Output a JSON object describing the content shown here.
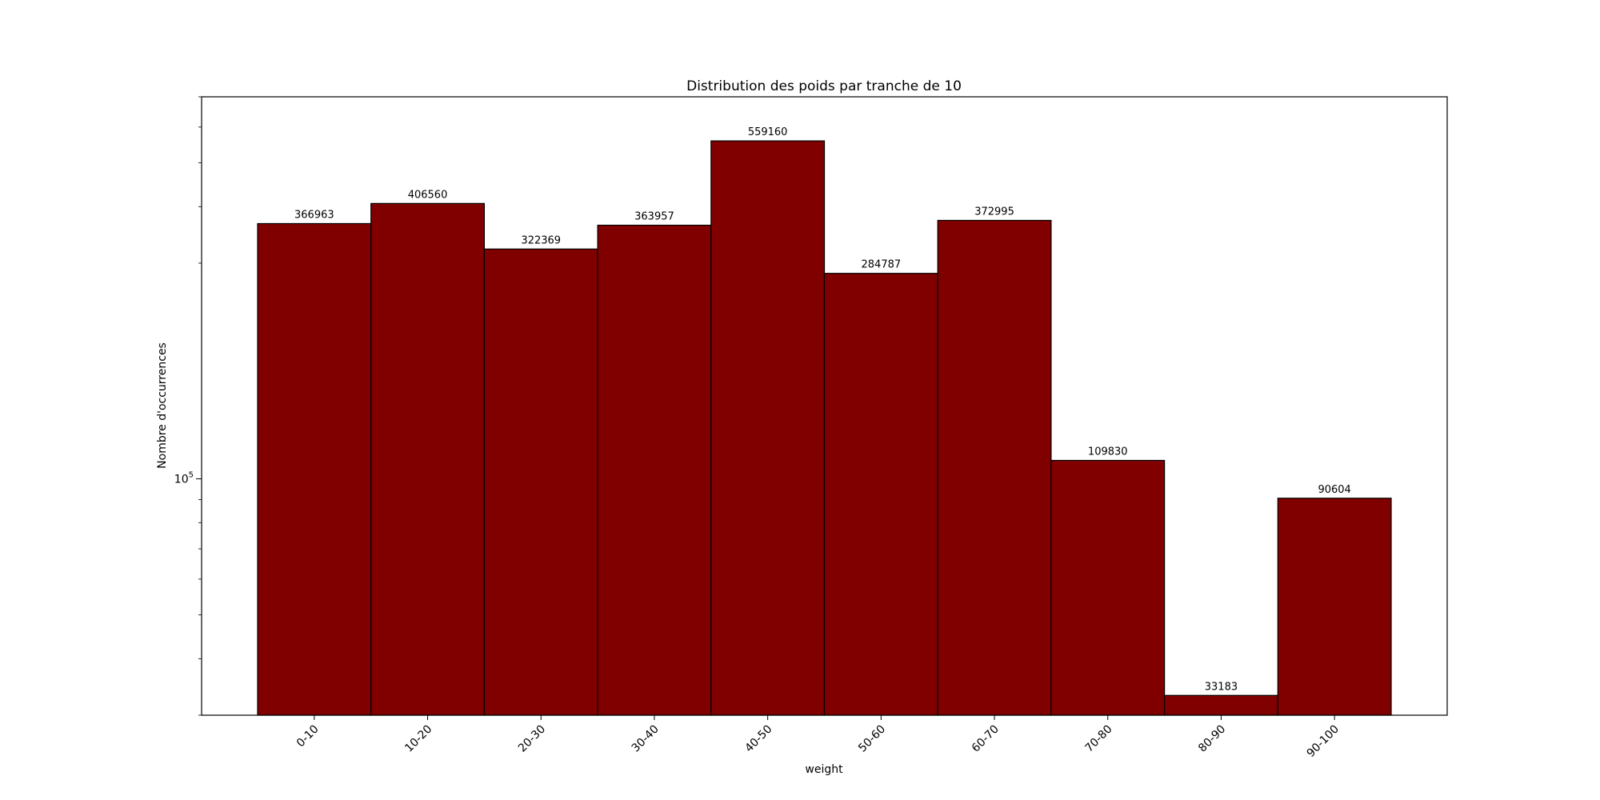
{
  "chart_data": {
    "type": "bar",
    "title": "Distribution des poids par tranche de 10",
    "xlabel": "weight",
    "ylabel": "Nombre d'occurrences",
    "y_scale": "log",
    "ylim": [
      30000,
      700000
    ],
    "y_major_tick_label": {
      "base": "10",
      "exponent": "5"
    },
    "categories": [
      "0-10",
      "10-20",
      "20-30",
      "30-40",
      "40-50",
      "50-60",
      "60-70",
      "70-80",
      "80-90",
      "90-100"
    ],
    "values": [
      366963,
      406560,
      322369,
      363957,
      559160,
      284787,
      372995,
      109830,
      33183,
      90604
    ],
    "data_labels": [
      "366963",
      "406560",
      "322369",
      "363957",
      "559160",
      "284787",
      "372995",
      "109830",
      "33183",
      "90604"
    ],
    "bar_color": "#800000",
    "edge_color": "#000000",
    "grid": false,
    "legend": "none"
  }
}
